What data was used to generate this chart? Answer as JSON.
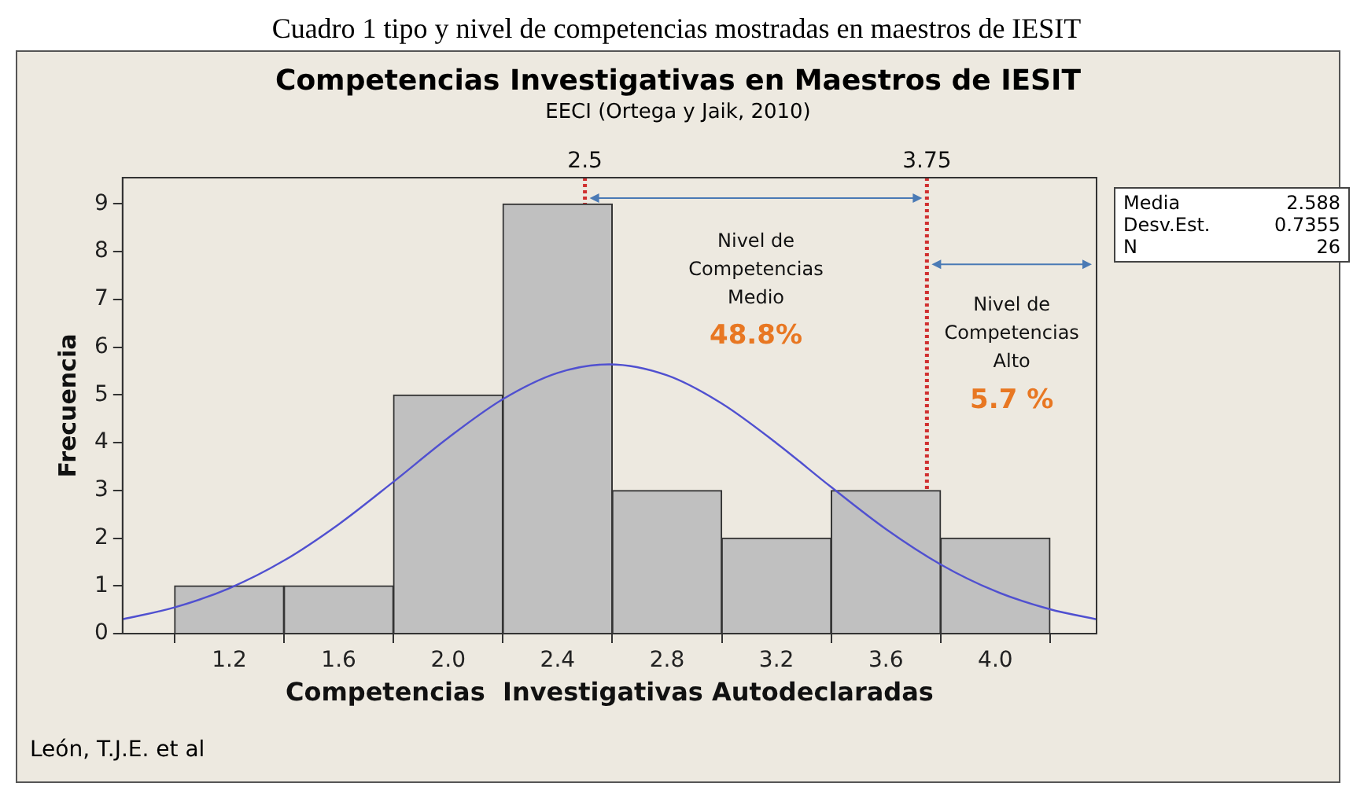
{
  "chart_data": {
    "type": "histogram",
    "title": "Competencias  Investigativas en Maestros de IESIT",
    "subtitle": "EECI (Ortega y Jaik, 2010)",
    "xlabel": "Competencias  Investigativas Autodeclaradas",
    "ylabel": "Frecuencia",
    "bins": [
      1.0,
      1.4,
      1.8,
      2.2,
      2.6,
      3.0,
      3.4,
      3.8,
      4.2
    ],
    "values": [
      1,
      1,
      5,
      9,
      3,
      2,
      3,
      2
    ],
    "color": "#c0c0c0",
    "series": [
      {
        "type": "line",
        "color": "#5050d0",
        "x": [
          0.81,
          1.0,
          1.2,
          1.4,
          1.6,
          1.8,
          2.0,
          2.2,
          2.4,
          2.588,
          2.8,
          3.0,
          3.2,
          3.4,
          3.6,
          3.8,
          4.0,
          4.2,
          4.37
        ],
        "values": [
          0.3,
          0.55,
          0.95,
          1.53,
          2.29,
          3.18,
          4.1,
          4.91,
          5.46,
          5.64,
          5.41,
          4.82,
          3.99,
          3.07,
          2.19,
          1.45,
          0.89,
          0.51,
          0.3
        ]
      }
    ],
    "xlim": [
      0.81,
      4.37
    ],
    "ylim": [
      0,
      9.55
    ],
    "xticks": [
      1.2,
      1.6,
      {
        "value": 2.0,
        "label": "2.0"
      },
      2.4,
      2.8,
      3.2,
      3.6,
      {
        "value": 4.0,
        "label": "4.0"
      }
    ],
    "yticks": [
      0,
      1,
      2,
      3,
      4,
      5,
      6,
      7,
      8,
      9
    ],
    "ref_lines": [
      {
        "axis": "x",
        "value": 2.5,
        "label": "2.5",
        "color": "#d03030",
        "line_style": "dotted"
      },
      {
        "axis": "x",
        "value": 3.75,
        "label": "3.75",
        "color": "#d03030",
        "line_style": "dotted"
      }
    ],
    "annotations": [
      "Cuadro 1 tipo y nivel de competencias mostradas en maestros de IESIT",
      "Media\t2.588",
      "Desv.Est.\t0.7355",
      "N\t26",
      "Nivel de\nCompetencias\nMedio\n48.8%",
      "Nivel de\nCompetencias\nAlto\n5.7 %",
      "León, T.J.E. et al"
    ],
    "grid": false,
    "legend": false,
    "marker": "none"
  }
}
